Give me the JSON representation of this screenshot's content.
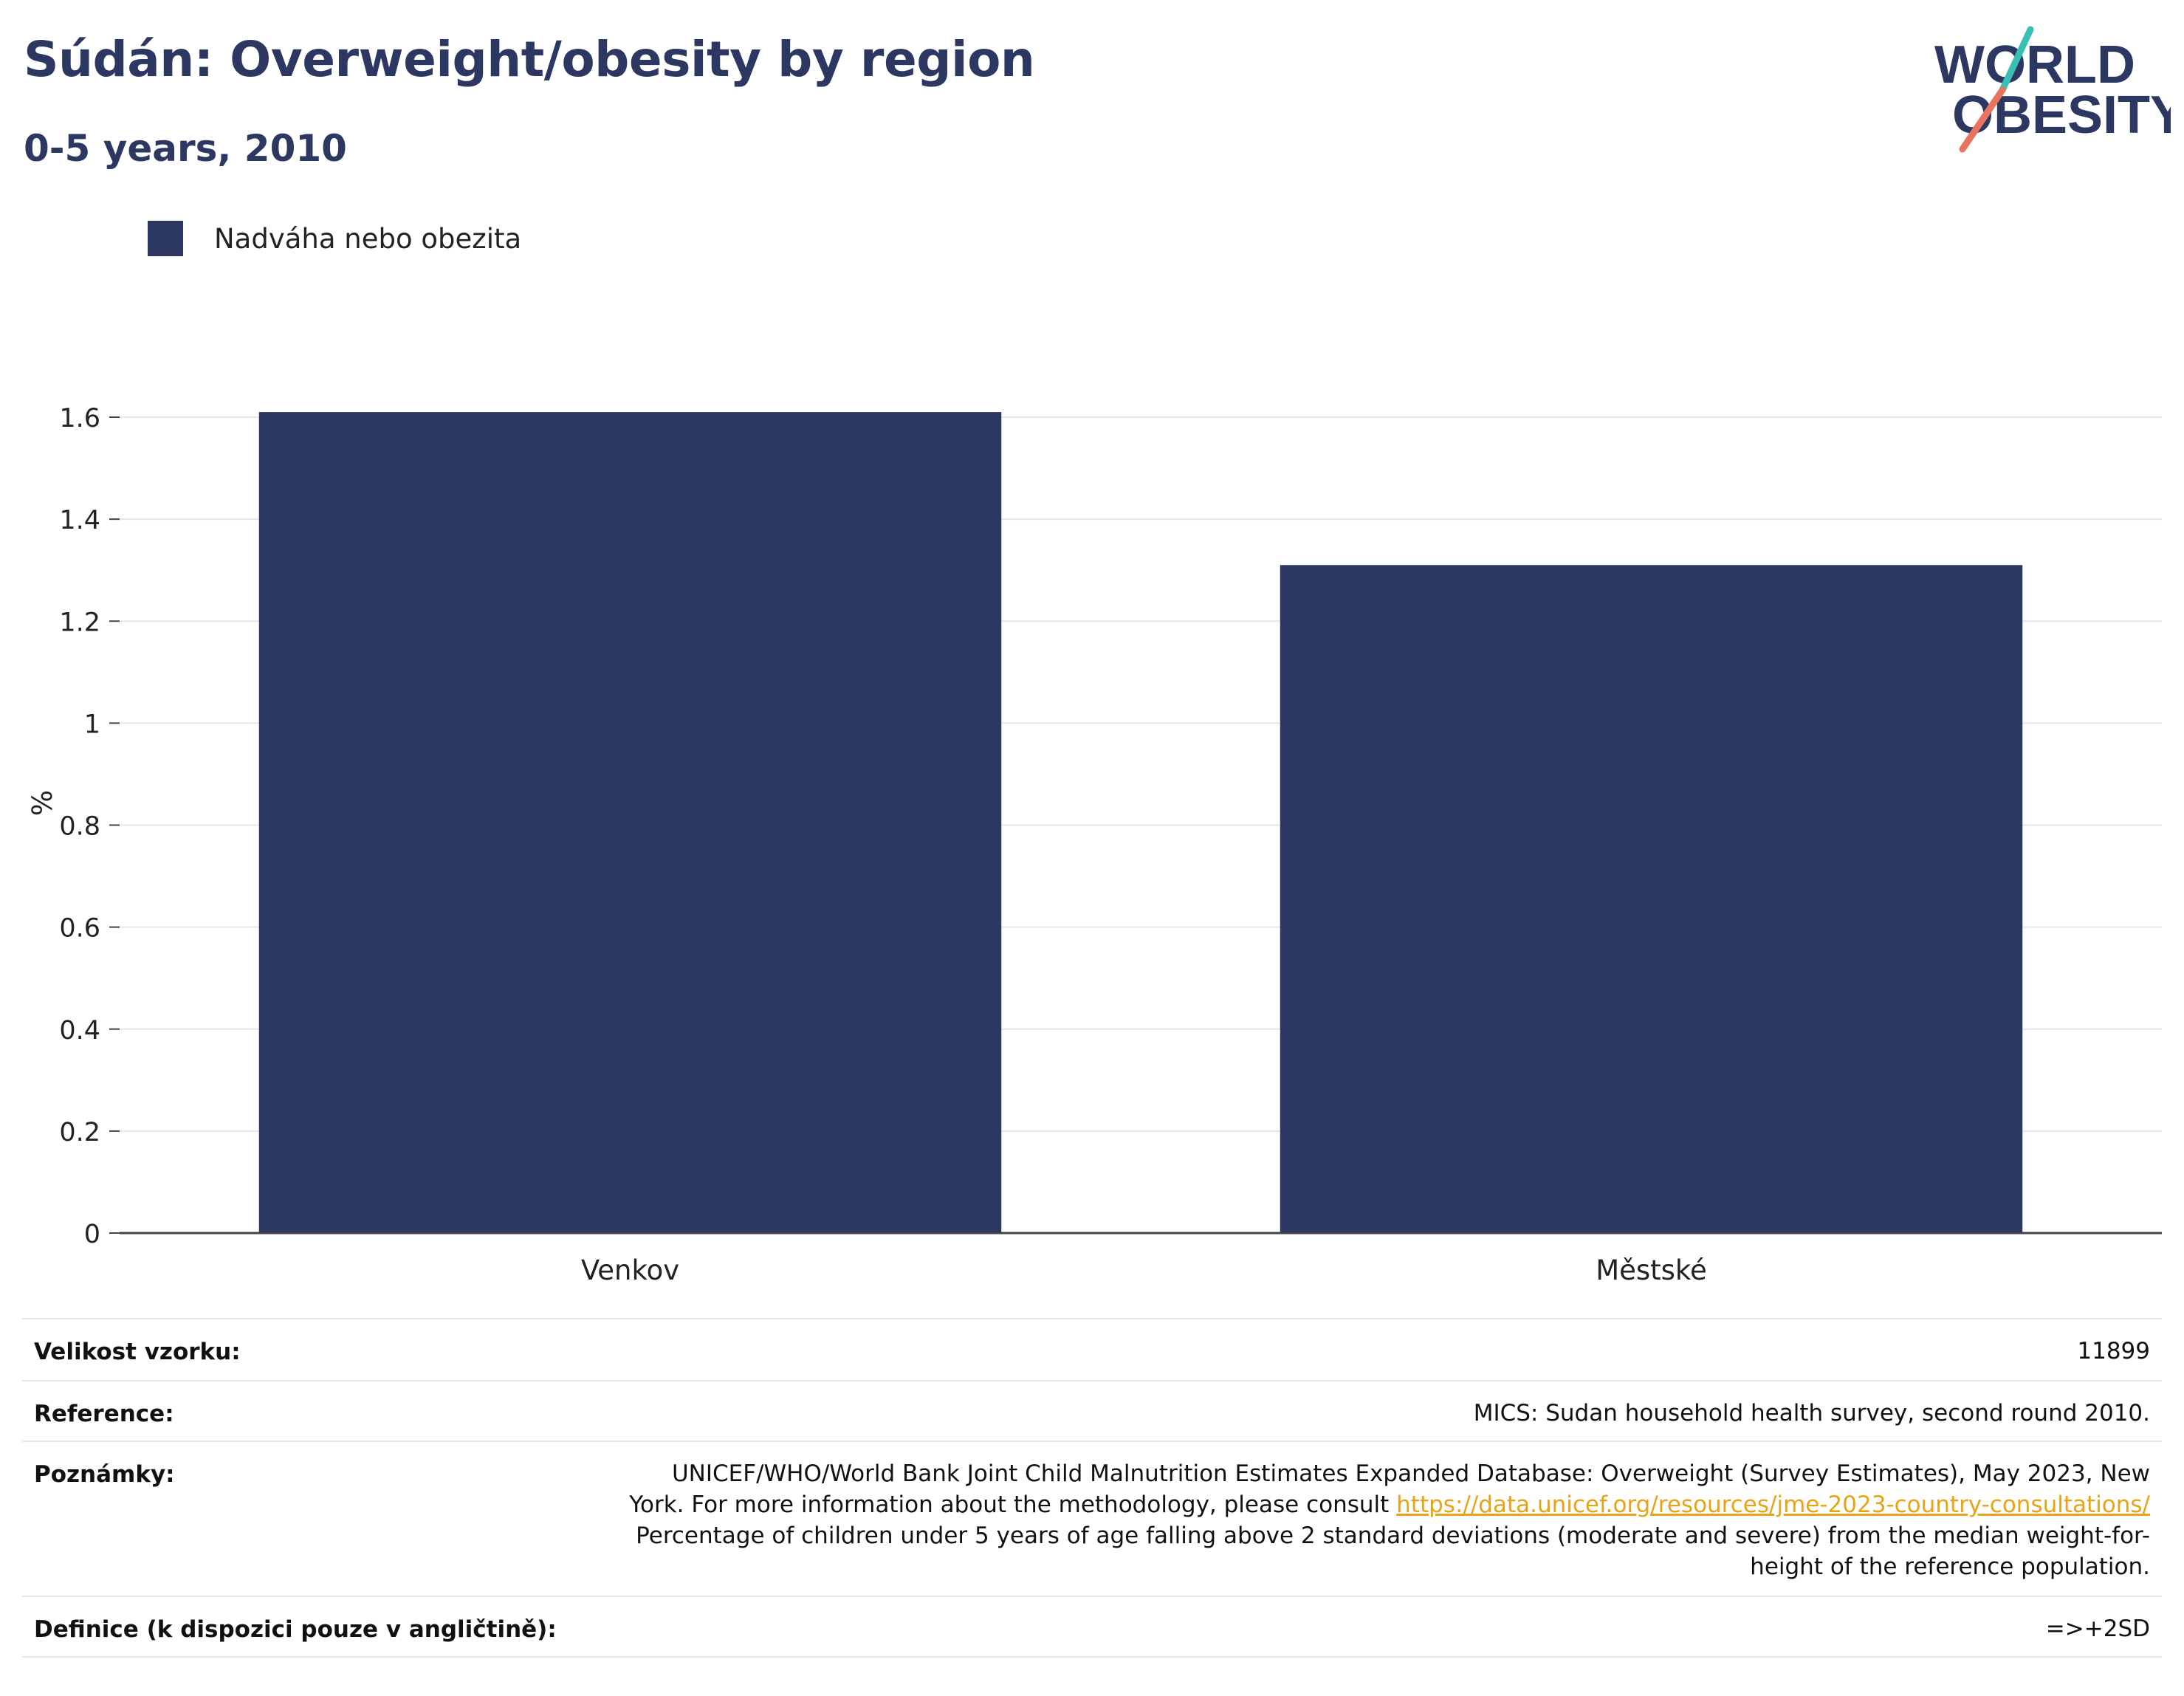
{
  "header": {
    "title": "Súdán: Overweight/obesity by region",
    "subtitle": "0-5 years, 2010"
  },
  "logo": {
    "line1": "WORLD",
    "line2": "OBESITY"
  },
  "colors": {
    "bar": "#2c3862",
    "title": "#2c3862",
    "link": "#e8a317",
    "logo_teal": "#3bbfb5",
    "logo_coral": "#e8735e"
  },
  "chart_data": {
    "type": "bar",
    "categories": [
      "Venkov",
      "Městské"
    ],
    "series": [
      {
        "name": "Nadváha nebo obezita",
        "values": [
          1.61,
          1.31
        ]
      }
    ],
    "ylabel": "%",
    "ylim": [
      0,
      1.6
    ],
    "yticks": [
      0,
      0.2,
      0.4,
      0.6,
      0.8,
      1,
      1.2,
      1.4,
      1.6
    ],
    "ytick_labels": [
      "0",
      "0.2",
      "0.4",
      "0.6",
      "0.8",
      "1",
      "1.2",
      "1.4",
      "1.6"
    ],
    "grid": true,
    "legend": "top-left"
  },
  "info": {
    "sample_label": "Velikost vzorku:",
    "sample_value": "11899",
    "reference_label": "Reference:",
    "reference_value": "MICS: Sudan household health survey, second round 2010.",
    "notes_label": "Poznámky:",
    "notes_line1": "UNICEF/WHO/World Bank Joint Child Malnutrition Estimates Expanded Database: Overweight (Survey Estimates), May 2023, New",
    "notes_line2": "York. For more information about the methodology, please consult ",
    "notes_link": "https://data.unicef.org/resources/jme-2023-country-consultations/",
    "notes_line3": "Percentage of children under 5 years of age falling above 2 standard deviations (moderate and severe) from the median weight-for-",
    "notes_line4": "height of the reference population.",
    "definition_label": "Definice (k dispozici pouze v angličtině):",
    "definition_value": "=>+2SD"
  }
}
